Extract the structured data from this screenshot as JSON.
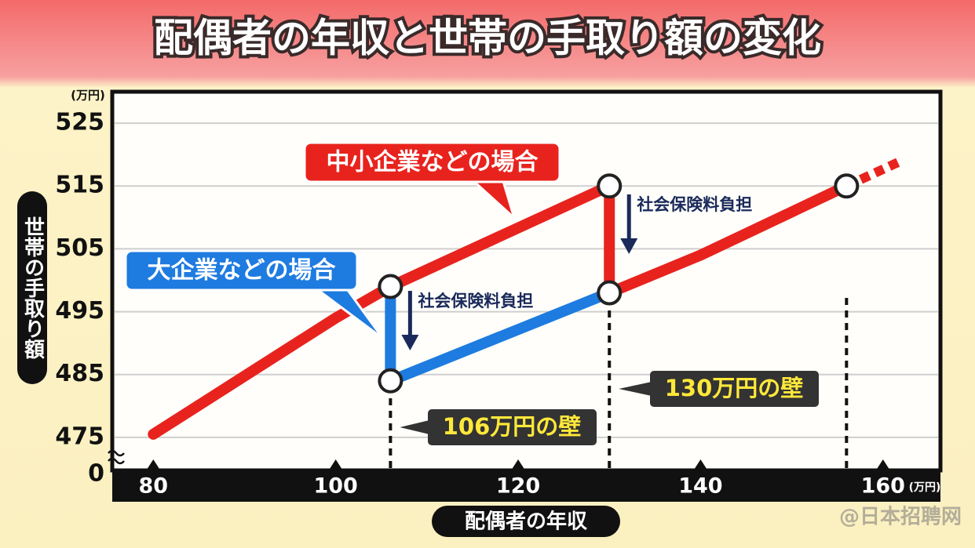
{
  "chart_data": {
    "type": "line",
    "title": "配偶者の年収と世帯の手取り額の変化",
    "x_label": "配偶者の年収",
    "y_label": "世帯の手取り額",
    "x_unit": "(万円)",
    "y_unit": "(万円)",
    "y_origin_label": "0",
    "xlim": [
      75.5,
      166.3
    ],
    "xticks": [
      80,
      100,
      120,
      140,
      160
    ],
    "ylim": [
      469.75,
      530
    ],
    "yticks": [
      475,
      485,
      495,
      505,
      515,
      525
    ],
    "grid": true,
    "series": [
      {
        "name": "中小企業などの場合",
        "color": "#e8231e",
        "x": [
          80,
          100,
          106,
          130,
          130,
          140,
          156
        ],
        "values": [
          475.5,
          494,
          499,
          515,
          498,
          504,
          515
        ],
        "dashed_x": [
          156,
          162
        ],
        "dashed_values": [
          515,
          519
        ]
      },
      {
        "name": "大企業などの場合",
        "color": "#1e7be0",
        "x": [
          106,
          106,
          130
        ],
        "values": [
          499,
          484,
          498
        ]
      }
    ],
    "annotations": [
      {
        "text": "社会保険料負担",
        "x": 106
      },
      {
        "text": "社会保険料負担",
        "x": 130
      }
    ],
    "walls": [
      {
        "text": "106万円の壁",
        "x": 106
      },
      {
        "text": "130万円の壁",
        "x": 130
      },
      {
        "x": 156
      }
    ],
    "watermark": "@日本招聘网"
  }
}
